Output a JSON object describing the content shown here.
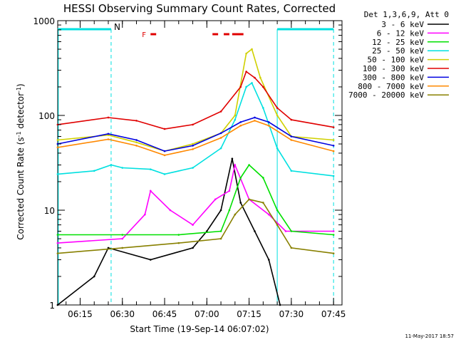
{
  "chart_data": {
    "type": "line",
    "title": "HESSI Observing Summary Count Rates, Corrected",
    "xlabel": "Start Time (19-Sep-14 06:07:02)",
    "ylabel_parts": [
      "Corrected Count Rate (s",
      "-1",
      " detector",
      "-1",
      ")"
    ],
    "yscale": "log",
    "ylim": [
      1,
      1000
    ],
    "xlim": [
      "06:07:02",
      "07:48:00"
    ],
    "x_ticks": [
      "06:15",
      "06:30",
      "06:45",
      "07:00",
      "07:15",
      "07:30",
      "07:45"
    ],
    "y_ticks": [
      "1",
      "10",
      "100",
      "1000"
    ],
    "legend_header": "Det 1,3,6,9, Att 0",
    "series": [
      {
        "name": "3 - 6 keV",
        "color": "#000000",
        "points": [
          [
            "06:07",
            "1"
          ],
          [
            "06:20",
            "2"
          ],
          [
            "06:25",
            "4"
          ],
          [
            "06:40",
            "3"
          ],
          [
            "06:55",
            "4"
          ],
          [
            "07:00",
            "6"
          ],
          [
            "07:05",
            "10"
          ],
          [
            "07:09",
            "35"
          ],
          [
            "07:12",
            "12"
          ],
          [
            "07:17",
            "6"
          ],
          [
            "07:22",
            "3"
          ],
          [
            "07:26",
            "1"
          ]
        ]
      },
      {
        "name": "6 - 12 keV",
        "color": "#ff00ff",
        "points": [
          [
            "06:07",
            "4.5"
          ],
          [
            "06:30",
            "5"
          ],
          [
            "06:38",
            "9"
          ],
          [
            "06:40",
            "16"
          ],
          [
            "06:47",
            "10"
          ],
          [
            "06:55",
            "7"
          ],
          [
            "07:03",
            "13"
          ],
          [
            "07:08",
            "16"
          ],
          [
            "07:10",
            "30"
          ],
          [
            "07:15",
            "13"
          ],
          [
            "07:22",
            "9"
          ],
          [
            "07:28",
            "6"
          ],
          [
            "07:45",
            "6"
          ]
        ]
      },
      {
        "name": "12 - 25 keV",
        "color": "#00e000",
        "points": [
          [
            "06:07",
            "5.5"
          ],
          [
            "06:30",
            "5.5"
          ],
          [
            "06:50",
            "5.5"
          ],
          [
            "07:05",
            "6"
          ],
          [
            "07:08",
            "10"
          ],
          [
            "07:12",
            "22"
          ],
          [
            "07:15",
            "30"
          ],
          [
            "07:20",
            "22"
          ],
          [
            "07:25",
            "10"
          ],
          [
            "07:30",
            "6"
          ],
          [
            "07:45",
            "5.5"
          ]
        ]
      },
      {
        "name": "25 - 50 keV",
        "color": "#00e0e0",
        "points": [
          [
            "06:07",
            "24"
          ],
          [
            "06:20",
            "26"
          ],
          [
            "06:26",
            "30"
          ],
          [
            "06:30",
            "28"
          ],
          [
            "06:40",
            "27"
          ],
          [
            "06:45",
            "24"
          ],
          [
            "06:55",
            "28"
          ],
          [
            "07:05",
            "45"
          ],
          [
            "07:10",
            "90"
          ],
          [
            "07:14",
            "200"
          ],
          [
            "07:16",
            "220"
          ],
          [
            "07:20",
            "120"
          ],
          [
            "07:25",
            "45"
          ],
          [
            "07:30",
            "26"
          ],
          [
            "07:45",
            "23"
          ]
        ]
      },
      {
        "name": "50 - 100 keV",
        "color": "#d0d000",
        "points": [
          [
            "06:07",
            "55"
          ],
          [
            "06:25",
            "62"
          ],
          [
            "06:35",
            "52"
          ],
          [
            "06:45",
            "42"
          ],
          [
            "06:55",
            "50"
          ],
          [
            "07:05",
            "65"
          ],
          [
            "07:10",
            "100"
          ],
          [
            "07:14",
            "450"
          ],
          [
            "07:16",
            "500"
          ],
          [
            "07:19",
            "250"
          ],
          [
            "07:25",
            "100"
          ],
          [
            "07:30",
            "60"
          ],
          [
            "07:45",
            "55"
          ]
        ]
      },
      {
        "name": "100 - 300 keV",
        "color": "#e00000",
        "points": [
          [
            "06:07",
            "80"
          ],
          [
            "06:25",
            "95"
          ],
          [
            "06:35",
            "88"
          ],
          [
            "06:45",
            "72"
          ],
          [
            "06:55",
            "80"
          ],
          [
            "07:05",
            "110"
          ],
          [
            "07:12",
            "200"
          ],
          [
            "07:14",
            "290"
          ],
          [
            "07:17",
            "250"
          ],
          [
            "07:20",
            "200"
          ],
          [
            "07:25",
            "120"
          ],
          [
            "07:30",
            "90"
          ],
          [
            "07:45",
            "75"
          ]
        ]
      },
      {
        "name": "300 - 800 keV",
        "color": "#0000e0",
        "points": [
          [
            "06:07",
            "50"
          ],
          [
            "06:25",
            "64"
          ],
          [
            "06:35",
            "55"
          ],
          [
            "06:45",
            "42"
          ],
          [
            "06:55",
            "48"
          ],
          [
            "07:05",
            "65"
          ],
          [
            "07:12",
            "85"
          ],
          [
            "07:17",
            "95"
          ],
          [
            "07:22",
            "85"
          ],
          [
            "07:30",
            "60"
          ],
          [
            "07:45",
            "48"
          ]
        ]
      },
      {
        "name": "800 - 7000 keV",
        "color": "#ff8800",
        "points": [
          [
            "06:07",
            "46"
          ],
          [
            "06:25",
            "56"
          ],
          [
            "06:35",
            "48"
          ],
          [
            "06:45",
            "38"
          ],
          [
            "06:55",
            "44"
          ],
          [
            "07:05",
            "58"
          ],
          [
            "07:12",
            "78"
          ],
          [
            "07:17",
            "88"
          ],
          [
            "07:22",
            "78"
          ],
          [
            "07:30",
            "55"
          ],
          [
            "07:45",
            "42"
          ]
        ]
      },
      {
        "name": "7000 - 20000 keV",
        "color": "#888000",
        "points": [
          [
            "06:07",
            "3.5"
          ],
          [
            "06:30",
            "4"
          ],
          [
            "06:50",
            "4.5"
          ],
          [
            "07:05",
            "5"
          ],
          [
            "07:10",
            "9"
          ],
          [
            "07:15",
            "13"
          ],
          [
            "07:20",
            "12"
          ],
          [
            "07:25",
            "7"
          ],
          [
            "07:30",
            "4"
          ],
          [
            "07:45",
            "3.5"
          ]
        ]
      }
    ],
    "night_markers": [
      [
        "06:07",
        "06:26"
      ],
      [
        "07:25",
        "07:45"
      ]
    ],
    "saa_label": "N",
    "flare_label": "F",
    "flare_intervals": [
      [
        "06:40",
        "06:42"
      ],
      [
        "07:02",
        "07:04"
      ],
      [
        "07:06",
        "07:08"
      ],
      [
        "07:09",
        "07:13"
      ]
    ]
  },
  "footer": {
    "date": "11-May-2017 18:57"
  }
}
